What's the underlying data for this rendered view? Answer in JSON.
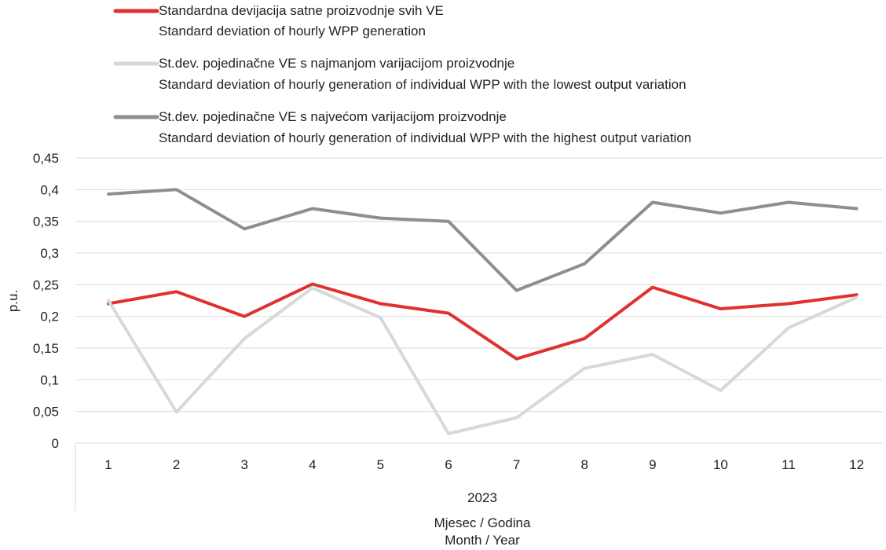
{
  "chart_data": {
    "type": "line",
    "title": "",
    "categories": [
      "1",
      "2",
      "3",
      "4",
      "5",
      "6",
      "7",
      "8",
      "9",
      "10",
      "11",
      "12"
    ],
    "group_label": "2023",
    "xlabel": [
      "Mjesec / Godina",
      "Month / Year"
    ],
    "ylabel": "p.u.",
    "ylim": [
      0,
      0.45
    ],
    "yticks": [
      {
        "value": 0,
        "label": "0"
      },
      {
        "value": 0.05,
        "label": "0,05"
      },
      {
        "value": 0.1,
        "label": "0,1"
      },
      {
        "value": 0.15,
        "label": "0,15"
      },
      {
        "value": 0.2,
        "label": "0,2"
      },
      {
        "value": 0.25,
        "label": "0,25"
      },
      {
        "value": 0.3,
        "label": "0,3"
      },
      {
        "value": 0.35,
        "label": "0,35"
      },
      {
        "value": 0.4,
        "label": "0,4"
      },
      {
        "value": 0.45,
        "label": "0,45"
      }
    ],
    "grid": true,
    "legend_position": "top",
    "series": [
      {
        "name": [
          "Standardna devijacija satne proizvodnje svih VE",
          "Standard deviation of hourly WPP generation"
        ],
        "color": "#e03131",
        "values": [
          0.22,
          0.239,
          0.2,
          0.251,
          0.22,
          0.205,
          0.133,
          0.165,
          0.246,
          0.212,
          0.22,
          0.234
        ]
      },
      {
        "name": [
          "St.dev. pojedinačne VE s najmanjom varijacijom proizvodnje",
          "Standard deviation of hourly generation of individual WPP with the lowest output variation"
        ],
        "color": "#d5d9d8",
        "values": [
          0.225,
          0.049,
          0.165,
          0.245,
          0.198,
          0.015,
          0.04,
          0.118,
          0.14,
          0.083,
          0.182,
          0.23
        ]
      },
      {
        "name": [
          "St.dev. pojedinačne VE s najvećom varijacijom proizvodnje",
          "Standard deviation of hourly generation of individual WPP with the highest output variation"
        ],
        "color": "#8c8e93",
        "values": [
          0.393,
          0.4,
          0.338,
          0.37,
          0.355,
          0.35,
          0.241,
          0.283,
          0.38,
          0.363,
          0.38,
          0.37
        ]
      }
    ]
  }
}
